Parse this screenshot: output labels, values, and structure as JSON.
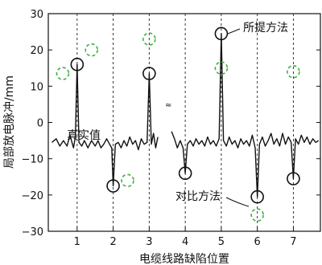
{
  "chart_data": {
    "type": "line",
    "xlabel": "电缆线路缺陷位置",
    "ylabel": "局部放电脉冲/mm",
    "ylim": [
      -30,
      30
    ],
    "yticks": [
      -30,
      -20,
      -10,
      0,
      10,
      20,
      30
    ],
    "xticks": [
      "1",
      "2",
      "3",
      "4",
      "5",
      "6",
      "7"
    ],
    "grid": "vertical dashed at defect positions",
    "annotations": {
      "true_value": "真实值",
      "proposed": "所提方法",
      "comparison": "对比方法"
    },
    "series": [
      {
        "name": "所提方法",
        "marker": "black open circle",
        "points": [
          {
            "x": 1,
            "y": 16
          },
          {
            "x": 2,
            "y": -17.5
          },
          {
            "x": 3,
            "y": 13.5
          },
          {
            "x": 4,
            "y": -14
          },
          {
            "x": 5,
            "y": 24.5
          },
          {
            "x": 6,
            "y": -20.5
          },
          {
            "x": 7,
            "y": -15.5
          }
        ]
      },
      {
        "name": "对比方法",
        "marker": "green dashed circle",
        "points": [
          {
            "x": 0.6,
            "y": 13.5
          },
          {
            "x": 1.4,
            "y": 20
          },
          {
            "x": 2.4,
            "y": -16
          },
          {
            "x": 3.0,
            "y": 23
          },
          {
            "x": 5.0,
            "y": 15
          },
          {
            "x": 6.0,
            "y": -25.5
          },
          {
            "x": 7.0,
            "y": 14
          }
        ]
      }
    ],
    "signal": {
      "segments": [
        [
          [
            0.3,
            -5.5
          ],
          [
            0.42,
            -4.5
          ],
          [
            0.52,
            -6.5
          ],
          [
            0.62,
            -5
          ],
          [
            0.72,
            -6.5
          ],
          [
            0.8,
            -3.5
          ],
          [
            0.9,
            -7
          ],
          [
            0.95,
            -4
          ],
          [
            1.0,
            16
          ],
          [
            1.05,
            -5.5
          ],
          [
            1.13,
            -6.5
          ],
          [
            1.2,
            -5
          ],
          [
            1.3,
            -7
          ],
          [
            1.4,
            -5
          ],
          [
            1.5,
            -6.5
          ],
          [
            1.58,
            -5
          ],
          [
            1.66,
            -7
          ],
          [
            1.74,
            -6
          ],
          [
            1.82,
            -4.5
          ],
          [
            1.9,
            -6
          ],
          [
            1.96,
            -7
          ],
          [
            2.0,
            -17.5
          ],
          [
            2.06,
            -6
          ],
          [
            2.14,
            -5.5
          ],
          [
            2.22,
            -7
          ],
          [
            2.3,
            -5
          ],
          [
            2.38,
            -6.5
          ],
          [
            2.46,
            -4
          ],
          [
            2.54,
            -6
          ],
          [
            2.62,
            -5
          ],
          [
            2.7,
            -7.5
          ],
          [
            2.78,
            -4.5
          ],
          [
            2.86,
            -6
          ],
          [
            2.94,
            -5.5
          ],
          [
            3.0,
            13.5
          ],
          [
            3.06,
            -6
          ],
          [
            3.12,
            -3
          ],
          [
            3.18,
            -7
          ],
          [
            3.24,
            -4
          ]
        ],
        [
          [
            3.62,
            -2.5
          ],
          [
            3.7,
            -4.5
          ],
          [
            3.78,
            -7
          ],
          [
            3.86,
            -5
          ],
          [
            3.94,
            -7
          ],
          [
            4.0,
            -14
          ],
          [
            4.06,
            -6
          ],
          [
            4.14,
            -5
          ],
          [
            4.22,
            -6.5
          ],
          [
            4.3,
            -4.5
          ],
          [
            4.38,
            -6
          ],
          [
            4.46,
            -5
          ],
          [
            4.54,
            -6.5
          ],
          [
            4.62,
            -4
          ],
          [
            4.7,
            -6
          ],
          [
            4.78,
            -5
          ],
          [
            4.86,
            -6.5
          ],
          [
            4.94,
            -4.5
          ],
          [
            5.0,
            24.5
          ],
          [
            5.06,
            -5
          ],
          [
            5.14,
            -6.5
          ],
          [
            5.22,
            -4
          ],
          [
            5.3,
            -6
          ],
          [
            5.38,
            -5
          ],
          [
            5.46,
            -7
          ],
          [
            5.54,
            -4.5
          ],
          [
            5.62,
            -6
          ],
          [
            5.7,
            -5
          ],
          [
            5.78,
            -6.5
          ],
          [
            5.86,
            -3.5
          ],
          [
            5.94,
            -7
          ],
          [
            6.0,
            -20.5
          ],
          [
            6.06,
            -6
          ],
          [
            6.14,
            -4
          ],
          [
            6.22,
            -6.5
          ],
          [
            6.3,
            -5
          ],
          [
            6.38,
            -3
          ],
          [
            6.46,
            -6
          ],
          [
            6.54,
            -4.5
          ],
          [
            6.62,
            -6.5
          ],
          [
            6.7,
            -3
          ],
          [
            6.78,
            -6
          ],
          [
            6.86,
            -4
          ],
          [
            6.94,
            -5.5
          ],
          [
            7.0,
            -15.5
          ],
          [
            7.06,
            -4.5
          ],
          [
            7.14,
            -6
          ],
          [
            7.22,
            -3.5
          ],
          [
            7.3,
            -5.5
          ],
          [
            7.38,
            -4
          ],
          [
            7.46,
            -6
          ],
          [
            7.54,
            -4.5
          ],
          [
            7.62,
            -5.5
          ],
          [
            7.7,
            -5
          ]
        ]
      ]
    }
  }
}
